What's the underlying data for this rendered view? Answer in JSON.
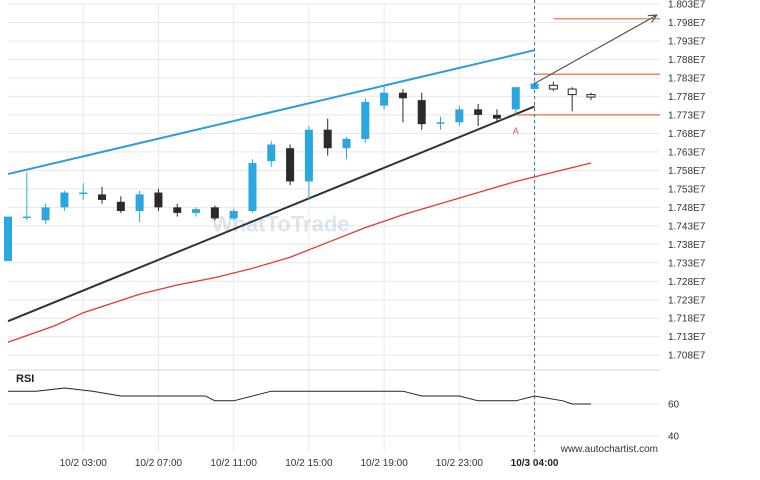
{
  "chart_data": {
    "type": "candlestick",
    "price_axis": {
      "min": 17040000.0,
      "max": 18030000.0,
      "tick_values": [
        17080000.0,
        17130000.0,
        17180000.0,
        17230000.0,
        17280000.0,
        17330000.0,
        17380000.0,
        17430000.0,
        17480000.0,
        17530000.0,
        17580000.0,
        17630000.0,
        17680000.0,
        17730000.0,
        17780000.0,
        17830000.0,
        17880000.0,
        17930000.0,
        17980000.0,
        18030000.0
      ],
      "tick_labels": [
        "1.708E7",
        "1.713E7",
        "1.718E7",
        "1.723E7",
        "1.728E7",
        "1.733E7",
        "1.738E7",
        "1.743E7",
        "1.748E7",
        "1.753E7",
        "1.758E7",
        "1.763E7",
        "1.768E7",
        "1.773E7",
        "1.778E7",
        "1.783E7",
        "1.788E7",
        "1.793E7",
        "1.798E7",
        "1.803E7"
      ]
    },
    "time_axis": {
      "unit": "hour",
      "start": "10/2 00:00",
      "range": [
        0.0,
        34.67
      ],
      "ticks": [
        {
          "x": 4,
          "label": "10/2 03:00",
          "bold": false
        },
        {
          "x": 8,
          "label": "10/2 07:00",
          "bold": false
        },
        {
          "x": 12,
          "label": "10/2 11:00",
          "bold": false
        },
        {
          "x": 16,
          "label": "10/2 15:00",
          "bold": false
        },
        {
          "x": 20,
          "label": "10/2 19:00",
          "bold": false
        },
        {
          "x": 24,
          "label": "10/2 23:00",
          "bold": false
        },
        {
          "x": 28,
          "label": "10/3 04:00",
          "bold": true
        }
      ]
    },
    "candles": [
      {
        "x": 0.0,
        "open": 17335000.0,
        "high": 17455000.0,
        "low": 17335000.0,
        "close": 17455000.0,
        "complete": true
      },
      {
        "x": 1.0,
        "open": 17455000.0,
        "high": 17575000.0,
        "low": 17445000.0,
        "close": 17455000.0,
        "complete": true
      },
      {
        "x": 2.0,
        "open": 17445000.0,
        "high": 17490000.0,
        "low": 17435000.0,
        "close": 17480000.0,
        "complete": true
      },
      {
        "x": 3.0,
        "open": 17480000.0,
        "high": 17525000.0,
        "low": 17470000.0,
        "close": 17520000.0,
        "complete": true
      },
      {
        "x": 4.0,
        "open": 17520000.0,
        "high": 17545000.0,
        "low": 17500000.0,
        "close": 17520000.0,
        "complete": true
      },
      {
        "x": 5.0,
        "open": 17515000.0,
        "high": 17535000.0,
        "low": 17490000.0,
        "close": 17500000.0,
        "complete": true
      },
      {
        "x": 6.0,
        "open": 17495000.0,
        "high": 17510000.0,
        "low": 17465000.0,
        "close": 17470000.0,
        "complete": true
      },
      {
        "x": 7.0,
        "open": 17470000.0,
        "high": 17525000.0,
        "low": 17440000.0,
        "close": 17515000.0,
        "complete": true
      },
      {
        "x": 8.0,
        "open": 17520000.0,
        "high": 17530000.0,
        "low": 17470000.0,
        "close": 17480000.0,
        "complete": true
      },
      {
        "x": 9.0,
        "open": 17480000.0,
        "high": 17490000.0,
        "low": 17455000.0,
        "close": 17465000.0,
        "complete": true
      },
      {
        "x": 10.0,
        "open": 17465000.0,
        "high": 17480000.0,
        "low": 17455000.0,
        "close": 17475000.0,
        "complete": true
      },
      {
        "x": 11.0,
        "open": 17480000.0,
        "high": 17485000.0,
        "low": 17445000.0,
        "close": 17450000.0,
        "complete": true
      },
      {
        "x": 12.0,
        "open": 17450000.0,
        "high": 17475000.0,
        "low": 17445000.0,
        "close": 17470000.0,
        "complete": true
      },
      {
        "x": 13.0,
        "open": 17470000.0,
        "high": 17610000.0,
        "low": 17465000.0,
        "close": 17600000.0,
        "complete": true
      },
      {
        "x": 14.0,
        "open": 17605000.0,
        "high": 17660000.0,
        "low": 17590000.0,
        "close": 17650000.0,
        "complete": true
      },
      {
        "x": 15.0,
        "open": 17640000.0,
        "high": 17650000.0,
        "low": 17540000.0,
        "close": 17550000.0,
        "complete": true
      },
      {
        "x": 16.0,
        "open": 17550000.0,
        "high": 17700000.0,
        "low": 17500000.0,
        "close": 17690000.0,
        "complete": true
      },
      {
        "x": 17.0,
        "open": 17690000.0,
        "high": 17720000.0,
        "low": 17620000.0,
        "close": 17640000.0,
        "complete": true
      },
      {
        "x": 18.0,
        "open": 17640000.0,
        "high": 17670000.0,
        "low": 17610000.0,
        "close": 17665000.0,
        "complete": true
      },
      {
        "x": 19.0,
        "open": 17665000.0,
        "high": 17775000.0,
        "low": 17655000.0,
        "close": 17765000.0,
        "complete": true
      },
      {
        "x": 20.0,
        "open": 17755000.0,
        "high": 17810000.0,
        "low": 17745000.0,
        "close": 17790000.0,
        "complete": true
      },
      {
        "x": 21.0,
        "open": 17790000.0,
        "high": 17800000.0,
        "low": 17710000.0,
        "close": 17775000.0,
        "complete": true
      },
      {
        "x": 22.0,
        "open": 17770000.0,
        "high": 17790000.0,
        "low": 17690000.0,
        "close": 17705000.0,
        "complete": true
      },
      {
        "x": 23.0,
        "open": 17710000.0,
        "high": 17725000.0,
        "low": 17690000.0,
        "close": 17710000.0,
        "complete": true
      },
      {
        "x": 24.0,
        "open": 17710000.0,
        "high": 17755000.0,
        "low": 17700000.0,
        "close": 17745000.0,
        "complete": true
      },
      {
        "x": 25.0,
        "open": 17745000.0,
        "high": 17760000.0,
        "low": 17700000.0,
        "close": 17730000.0,
        "complete": true
      },
      {
        "x": 26.0,
        "open": 17730000.0,
        "high": 17745000.0,
        "low": 17710000.0,
        "close": 17720000.0,
        "complete": true
      },
      {
        "x": 27.0,
        "open": 17745000.0,
        "high": 17805000.0,
        "low": 17735000.0,
        "close": 17805000.0,
        "complete": true
      },
      {
        "x": 28.0,
        "open": 17800000.0,
        "high": 17820000.0,
        "low": 17800000.0,
        "close": 17815000.0,
        "complete": true
      },
      {
        "x": 29.0,
        "open": 17810000.0,
        "high": 17820000.0,
        "low": 17795000.0,
        "close": 17800000.0,
        "complete": false
      },
      {
        "x": 30.0,
        "open": 17800000.0,
        "high": 17805000.0,
        "low": 17740000.0,
        "close": 17785000.0,
        "complete": false
      },
      {
        "x": 31.0,
        "open": 17785000.0,
        "high": 17790000.0,
        "low": 17770000.0,
        "close": 17780000.0,
        "complete": false
      }
    ],
    "channel_upper": {
      "points": [
        [
          0.0,
          17570000.0
        ],
        [
          28.0,
          17905000.0
        ]
      ],
      "color": "#2a9fd8"
    },
    "channel_lower": {
      "points": [
        [
          0.0,
          17172000.0
        ],
        [
          28.0,
          17753000.0
        ]
      ],
      "color": "#333333"
    },
    "moving_average": {
      "points": [
        [
          0.0,
          17115000.0
        ],
        [
          2.5,
          17160000.0
        ],
        [
          4.0,
          17195000.0
        ],
        [
          7.0,
          17245000.0
        ],
        [
          9.0,
          17270000.0
        ],
        [
          11.0,
          17290000.0
        ],
        [
          13.0,
          17315000.0
        ],
        [
          15.0,
          17345000.0
        ],
        [
          17.0,
          17385000.0
        ],
        [
          19.0,
          17425000.0
        ],
        [
          21.0,
          17460000.0
        ],
        [
          23.0,
          17490000.0
        ],
        [
          25.0,
          17520000.0
        ],
        [
          27.0,
          17550000.0
        ],
        [
          29.0,
          17575000.0
        ],
        [
          31.0,
          17600000.0
        ]
      ],
      "color": "#e8382d"
    },
    "target_levels": [
      {
        "value": 17990000.0,
        "from_x": 29.0,
        "to_x": 34.67
      },
      {
        "value": 17840000.0,
        "from_x": 28.0,
        "to_x": 34.67
      },
      {
        "value": 17730000.0,
        "from_x": 27.0,
        "to_x": 34.67
      }
    ],
    "projection_arrow": {
      "from": [
        28.0,
        17815000.0
      ],
      "to": [
        34.5,
        18000000.0
      ],
      "color": "#555555"
    },
    "marker": {
      "label": "A",
      "x": 27.0,
      "value": 17705000.0
    },
    "current_time_x": 28.0,
    "rsi": {
      "label": "RSI",
      "ticks": [
        60,
        40
      ],
      "range": [
        30,
        80
      ],
      "points": [
        [
          0.0,
          68
        ],
        [
          1.5,
          68
        ],
        [
          3.0,
          70
        ],
        [
          4.5,
          68
        ],
        [
          6.0,
          65
        ],
        [
          9.0,
          65
        ],
        [
          10.5,
          65
        ],
        [
          11.0,
          62
        ],
        [
          12.0,
          62
        ],
        [
          14.0,
          68
        ],
        [
          20.0,
          68
        ],
        [
          21.0,
          68
        ],
        [
          22.0,
          65
        ],
        [
          24.0,
          65
        ],
        [
          25.0,
          62
        ],
        [
          27.0,
          62
        ],
        [
          28.0,
          65
        ],
        [
          29.5,
          62
        ],
        [
          30.0,
          60
        ],
        [
          31.0,
          60
        ]
      ],
      "color": "#222222"
    },
    "watermark": "WhatToTrade",
    "credit": "www.autochartist.com",
    "colors": {
      "bullish": "#2aa6e0",
      "bearish": "#2b2b2b",
      "target": "#f06b3a",
      "grid": "#e8e8e8"
    }
  }
}
